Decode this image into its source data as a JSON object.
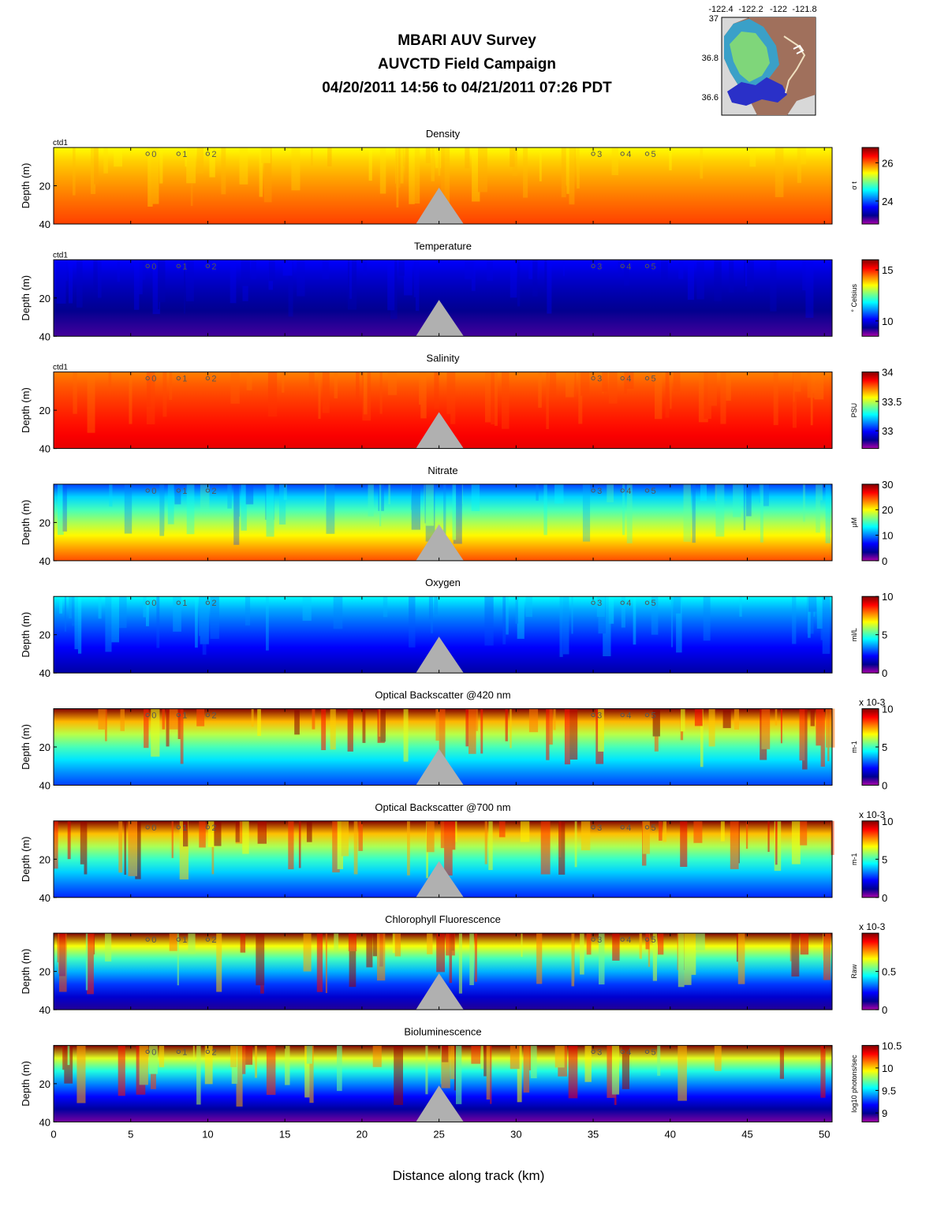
{
  "header": {
    "title_line1": "MBARI AUV Survey",
    "title_line2": "AUVCTD Field Campaign",
    "title_line3": "04/20/2011 14:56  to 04/21/2011 07:26 PDT"
  },
  "inset_map": {
    "lon_ticks": [
      "-122.4",
      "-122.2",
      "-122",
      "-121.8"
    ],
    "lat_ticks": [
      "37",
      "36.8",
      "36.6"
    ]
  },
  "colors": {
    "jet": [
      "#aa00aa",
      "#00008f",
      "#0000ff",
      "#0080ff",
      "#00ffff",
      "#80ff80",
      "#ffff00",
      "#ff8000",
      "#ff0000",
      "#800000"
    ],
    "bathymetry": "#b0b0b0",
    "axis": "#000000"
  },
  "chart_data": {
    "type": "heatmap",
    "xlabel": "Distance along track (km)",
    "xlim": [
      0,
      50.5
    ],
    "x_ticks": [
      "0",
      "5",
      "10",
      "15",
      "20",
      "25",
      "30",
      "35",
      "40",
      "45",
      "50"
    ],
    "ylabel": "Depth (m)",
    "ylim": [
      40,
      0
    ],
    "y_ticks": [
      "20",
      "40"
    ],
    "station_markers": [
      {
        "label": "0",
        "km": 6.1
      },
      {
        "label": "1",
        "km": 8.1
      },
      {
        "label": "2",
        "km": 10.0
      },
      {
        "label": "3",
        "km": 35.0
      },
      {
        "label": "4",
        "km": 36.9
      },
      {
        "label": "5",
        "km": 38.5
      }
    ],
    "seafloor_peak": {
      "km": 25.0,
      "depth_m": 21
    },
    "panels": [
      {
        "title": "Density",
        "instrument": "ctd1",
        "cb_unit": "σ t",
        "cb_min": 22.8,
        "cb_max": 26.8,
        "cb_ticks": [
          "26",
          "24"
        ],
        "cb_multiplier": ""
      },
      {
        "title": "Temperature",
        "instrument": "ctd1",
        "cb_unit": "° Celsius",
        "cb_min": 8.5,
        "cb_max": 16.0,
        "cb_ticks": [
          "15",
          "10"
        ],
        "cb_multiplier": ""
      },
      {
        "title": "Salinity",
        "instrument": "ctd1",
        "cb_unit": "PSU",
        "cb_min": 32.7,
        "cb_max": 34.0,
        "cb_ticks": [
          "34",
          "33.5",
          "33"
        ],
        "cb_multiplier": ""
      },
      {
        "title": "Nitrate",
        "instrument": "",
        "cb_unit": "μM",
        "cb_min": 0,
        "cb_max": 30,
        "cb_ticks": [
          "30",
          "20",
          "10",
          "0"
        ],
        "cb_multiplier": ""
      },
      {
        "title": "Oxygen",
        "instrument": "",
        "cb_unit": "ml/L",
        "cb_min": 0,
        "cb_max": 10,
        "cb_ticks": [
          "10",
          "5",
          "0"
        ],
        "cb_multiplier": ""
      },
      {
        "title": "Optical Backscatter @420 nm",
        "instrument": "",
        "cb_unit": "m-1",
        "cb_min": 0,
        "cb_max": 10,
        "cb_ticks": [
          "10",
          "5",
          "0"
        ],
        "cb_multiplier": "x 10-3"
      },
      {
        "title": "Optical Backscatter @700 nm",
        "instrument": "",
        "cb_unit": "m-1",
        "cb_min": 0,
        "cb_max": 10,
        "cb_ticks": [
          "10",
          "5",
          "0"
        ],
        "cb_multiplier": "x 10-3"
      },
      {
        "title": "Chlorophyll Fluorescence",
        "instrument": "",
        "cb_unit": "Raw",
        "cb_min": 0,
        "cb_max": 1,
        "cb_ticks": [
          "0.5",
          "0"
        ],
        "cb_multiplier": "x 10-3"
      },
      {
        "title": "Bioluminescence",
        "instrument": "",
        "cb_unit": "log10 photons/sec",
        "cb_min": 8.8,
        "cb_max": 10.5,
        "cb_ticks": [
          "10.5",
          "10",
          "9.5",
          "9"
        ],
        "cb_multiplier": ""
      }
    ]
  }
}
